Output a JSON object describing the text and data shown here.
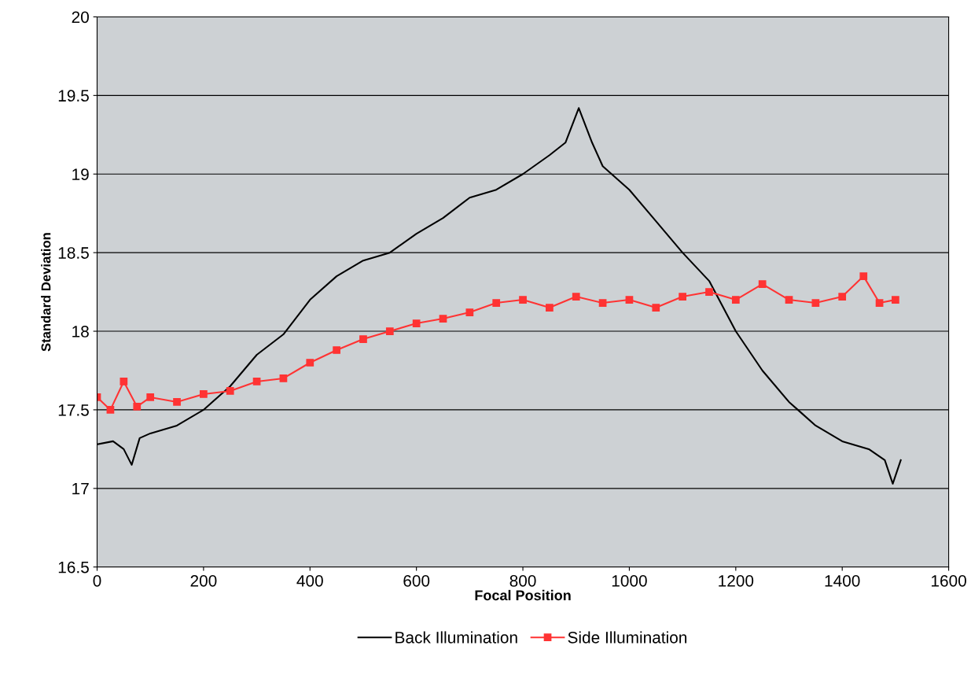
{
  "chart_data": {
    "type": "line",
    "xlabel": "Focal Position",
    "ylabel": "Standard Deviation",
    "xlim": [
      0,
      1600
    ],
    "xticks": [
      0,
      200,
      400,
      600,
      800,
      1000,
      1200,
      1400,
      1600
    ],
    "ylim": [
      16.5,
      20
    ],
    "yticks": [
      16.5,
      17,
      17.5,
      18,
      18.5,
      19,
      19.5,
      20
    ],
    "grid": "y",
    "legend": "bottom",
    "series": [
      {
        "name": "Back Illumination",
        "color": "#000000",
        "marker": "none",
        "x": [
          0,
          30,
          50,
          65,
          80,
          100,
          150,
          200,
          250,
          300,
          350,
          400,
          450,
          500,
          550,
          600,
          650,
          700,
          750,
          800,
          850,
          880,
          905,
          930,
          950,
          1000,
          1050,
          1100,
          1150,
          1200,
          1250,
          1300,
          1350,
          1400,
          1450,
          1480,
          1495,
          1510
        ],
        "values": [
          17.28,
          17.3,
          17.25,
          17.15,
          17.32,
          17.35,
          17.4,
          17.5,
          17.65,
          17.85,
          17.98,
          18.2,
          18.35,
          18.45,
          18.5,
          18.62,
          18.72,
          18.85,
          18.9,
          19.0,
          19.12,
          19.2,
          19.42,
          19.2,
          19.05,
          18.9,
          18.7,
          18.5,
          18.32,
          18.0,
          17.75,
          17.55,
          17.4,
          17.3,
          17.25,
          17.18,
          17.03,
          17.18
        ]
      },
      {
        "name": "Side Illumination",
        "color": "#ff3333",
        "marker": "square",
        "x": [
          0,
          25,
          50,
          75,
          100,
          150,
          200,
          250,
          300,
          350,
          400,
          450,
          500,
          550,
          600,
          650,
          700,
          750,
          800,
          850,
          900,
          950,
          1000,
          1050,
          1100,
          1150,
          1200,
          1250,
          1300,
          1350,
          1400,
          1440,
          1470,
          1500
        ],
        "values": [
          17.58,
          17.5,
          17.68,
          17.52,
          17.58,
          17.55,
          17.6,
          17.62,
          17.68,
          17.7,
          17.8,
          17.88,
          17.95,
          18.0,
          18.05,
          18.08,
          18.12,
          18.18,
          18.2,
          18.15,
          18.22,
          18.18,
          18.2,
          18.15,
          18.22,
          18.25,
          18.2,
          18.3,
          18.2,
          18.18,
          18.22,
          18.35,
          18.18,
          18.2
        ]
      }
    ]
  }
}
